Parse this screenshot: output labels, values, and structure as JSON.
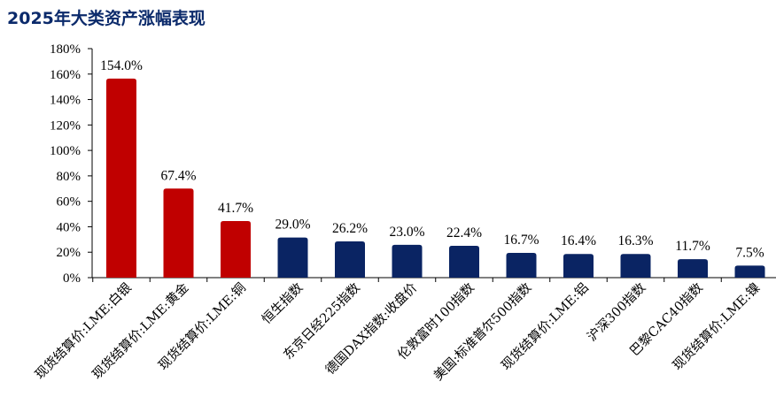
{
  "title": "2025年大类资产涨幅表现",
  "colors": {
    "highlight": "#c00000",
    "base": "#0a2463",
    "title": "#0b2a6b",
    "axis": "#000000"
  },
  "chart_data": {
    "type": "bar",
    "title": "2025年大类资产涨幅表现",
    "xlabel": "",
    "ylabel": "",
    "ylim": [
      0,
      180
    ],
    "ytick_step": 20,
    "ytick_suffix": "%",
    "grid": false,
    "legend": "none",
    "categories": [
      "现货结算价:LME:白银",
      "现货结算价:LME:黄金",
      "现货结算价:LME:铜",
      "恒生指数",
      "东京日经225指数",
      "德国DAX指数:收盘价",
      "伦敦富时100指数",
      "美国:标准普尔500指数",
      "现货结算价:LME:铝",
      "沪深300指数",
      "巴黎CAC40指数",
      "现货结算价:LME:镍"
    ],
    "values": [
      154.0,
      67.4,
      41.7,
      29.0,
      26.2,
      23.0,
      22.4,
      16.7,
      16.4,
      16.3,
      11.7,
      7.5
    ],
    "bar_heights": [
      156.5,
      70.0,
      44.5,
      31.5,
      28.5,
      25.8,
      25.0,
      19.5,
      18.6,
      18.6,
      14.5,
      9.5
    ],
    "labels": [
      "154.0%",
      "67.4%",
      "41.7%",
      "29.0%",
      "26.2%",
      "23.0%",
      "22.4%",
      "16.7%",
      "16.4%",
      "16.3%",
      "11.7%",
      "7.5%"
    ],
    "highlight_count": 3
  }
}
